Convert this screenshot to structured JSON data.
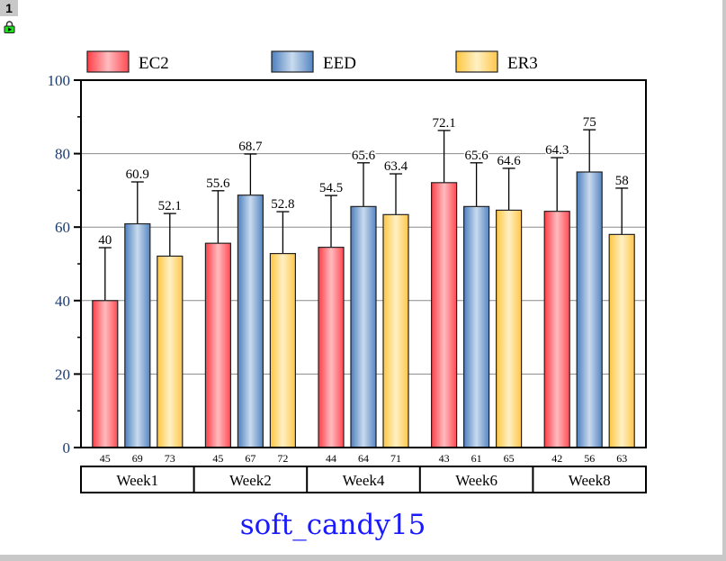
{
  "page_number": "1",
  "icons": {
    "lock": "lock-icon"
  },
  "chart_data": {
    "type": "bar",
    "title": "soft_candy15",
    "categories": [
      "Week1",
      "Week2",
      "Week4",
      "Week6",
      "Week8"
    ],
    "series": [
      {
        "name": "EC2",
        "values": [
          40,
          55.6,
          54.5,
          72.1,
          64.3
        ],
        "labels": [
          "40",
          "55.6",
          "54.5",
          "72.1",
          "64.3"
        ],
        "errors": [
          14.4,
          14.3,
          14.1,
          14.2,
          14.6
        ],
        "counts": [
          "45",
          "45",
          "44",
          "43",
          "42"
        ],
        "color": "#ff5a5f"
      },
      {
        "name": "EED",
        "values": [
          60.9,
          68.7,
          65.6,
          65.6,
          75
        ],
        "labels": [
          "60.9",
          "68.7",
          "65.6",
          "65.6",
          "75"
        ],
        "errors": [
          11.4,
          11.2,
          11.9,
          11.9,
          11.5
        ],
        "counts": [
          "69",
          "67",
          "64",
          "61",
          "56"
        ],
        "color": "#5b8bc4"
      },
      {
        "name": "ER3",
        "values": [
          52.1,
          52.8,
          63.4,
          64.6,
          58
        ],
        "labels": [
          "52.1",
          "52.8",
          "63.4",
          "64.6",
          "58"
        ],
        "errors": [
          11.6,
          11.4,
          11.1,
          11.4,
          12.6
        ],
        "counts": [
          "73",
          "72",
          "71",
          "65",
          "63"
        ],
        "color": "#ffce5c"
      }
    ],
    "ylim": [
      0,
      100
    ],
    "yticks": [
      "0",
      "20",
      "40",
      "60",
      "80",
      "100"
    ],
    "grid": true,
    "legend": "top"
  }
}
